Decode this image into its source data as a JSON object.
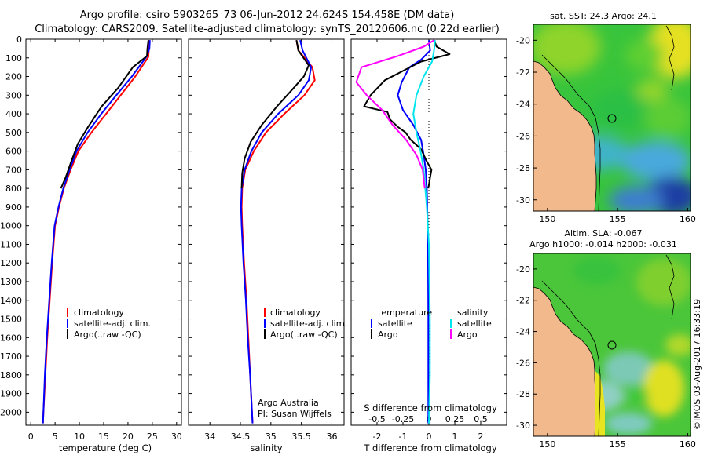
{
  "header": {
    "line1": "Argo profile: csiro 5903265_73 06-Jun-2012 24.624S 154.458E (DM data)",
    "line2": "Climatology: CARS2009. Satellite-adjusted climatology: synTS_20120606.nc (0.22d earlier)"
  },
  "colors": {
    "climatology": "#ff0000",
    "satellite": "#0000ff",
    "argo": "#000000",
    "salinity_satellite": "#00e5ee",
    "salinity_argo": "#ff00ff",
    "land": "#f2b98c"
  },
  "chart_data": [
    {
      "type": "line",
      "id": "temperature",
      "xlabel": "temperature (deg C)",
      "ylabel": "",
      "xlim": [
        -1,
        31
      ],
      "ylim": [
        2070,
        0
      ],
      "xticks": [
        0,
        5,
        10,
        15,
        20,
        25,
        30
      ],
      "yticks": [
        0,
        100,
        200,
        300,
        400,
        500,
        600,
        700,
        800,
        900,
        1000,
        1100,
        1200,
        1300,
        1400,
        1500,
        1600,
        1700,
        1800,
        1900,
        2000
      ],
      "legend": [
        "climatology",
        "satellite-adj. clim.",
        "Argo(..raw -QC)"
      ],
      "series": [
        {
          "name": "climatology",
          "color": "#ff0000",
          "points": [
            [
              24.4,
              5
            ],
            [
              24.3,
              50
            ],
            [
              24.2,
              95
            ],
            [
              21.5,
              200
            ],
            [
              18.5,
              300
            ],
            [
              15.5,
              400
            ],
            [
              12.5,
              500
            ],
            [
              9.8,
              600
            ],
            [
              8.2,
              700
            ],
            [
              6.8,
              800
            ],
            [
              5.8,
              900
            ],
            [
              5.0,
              1000
            ],
            [
              4.4,
              1200
            ],
            [
              3.9,
              1400
            ],
            [
              3.4,
              1600
            ],
            [
              3.0,
              1800
            ],
            [
              2.6,
              2000
            ],
            [
              2.5,
              2060
            ]
          ]
        },
        {
          "name": "satellite-adj. clim.",
          "color": "#0000ff",
          "points": [
            [
              24.5,
              5
            ],
            [
              24.4,
              50
            ],
            [
              23.9,
              90
            ],
            [
              20.8,
              200
            ],
            [
              17.6,
              300
            ],
            [
              14.5,
              400
            ],
            [
              11.7,
              500
            ],
            [
              9.4,
              600
            ],
            [
              8.0,
              700
            ],
            [
              6.7,
              800
            ],
            [
              5.7,
              900
            ],
            [
              4.9,
              1000
            ],
            [
              4.3,
              1200
            ],
            [
              3.8,
              1400
            ],
            [
              3.3,
              1600
            ],
            [
              2.9,
              1800
            ],
            [
              2.6,
              2000
            ],
            [
              2.5,
              2060
            ]
          ]
        },
        {
          "name": "Argo(..raw -QC)",
          "color": "#000000",
          "points": [
            [
              24.2,
              5
            ],
            [
              24.0,
              50
            ],
            [
              23.9,
              90
            ],
            [
              21.0,
              150
            ],
            [
              18.0,
              260
            ],
            [
              14.6,
              360
            ],
            [
              11.8,
              470
            ],
            [
              9.7,
              560
            ],
            [
              8.4,
              650
            ],
            [
              7.2,
              740
            ],
            [
              6.2,
              800
            ]
          ]
        }
      ]
    },
    {
      "type": "line",
      "id": "salinity",
      "xlabel": "salinity",
      "ylabel": "",
      "xlim": [
        33.65,
        36.2
      ],
      "ylim": [
        2070,
        0
      ],
      "xticks": [
        34,
        34.5,
        35,
        35.5,
        36
      ],
      "legend": [
        "climatology",
        "satellite-adj. clim.",
        "Argo(..raw -QC)"
      ],
      "annotation": [
        "Argo Australia",
        "PI: Susan Wijffels"
      ],
      "series": [
        {
          "name": "climatology",
          "color": "#ff0000",
          "points": [
            [
              35.42,
              5
            ],
            [
              35.45,
              60
            ],
            [
              35.68,
              150
            ],
            [
              35.72,
              220
            ],
            [
              35.55,
              300
            ],
            [
              35.22,
              400
            ],
            [
              34.92,
              500
            ],
            [
              34.72,
              600
            ],
            [
              34.58,
              700
            ],
            [
              34.53,
              800
            ],
            [
              34.52,
              900
            ],
            [
              34.53,
              1000
            ],
            [
              34.56,
              1200
            ],
            [
              34.6,
              1400
            ],
            [
              34.63,
              1600
            ],
            [
              34.66,
              1800
            ],
            [
              34.69,
              2000
            ],
            [
              34.7,
              2060
            ]
          ]
        },
        {
          "name": "satellite-adj. clim.",
          "color": "#0000ff",
          "points": [
            [
              35.48,
              5
            ],
            [
              35.52,
              60
            ],
            [
              35.66,
              150
            ],
            [
              35.62,
              220
            ],
            [
              35.45,
              300
            ],
            [
              35.12,
              400
            ],
            [
              34.85,
              500
            ],
            [
              34.68,
              600
            ],
            [
              34.57,
              700
            ],
            [
              34.52,
              800
            ],
            [
              34.51,
              900
            ],
            [
              34.52,
              1000
            ],
            [
              34.55,
              1200
            ],
            [
              34.59,
              1400
            ],
            [
              34.62,
              1600
            ],
            [
              34.66,
              1800
            ],
            [
              34.69,
              2000
            ],
            [
              34.7,
              2060
            ]
          ]
        },
        {
          "name": "Argo(..raw -QC)",
          "color": "#000000",
          "points": [
            [
              35.42,
              5
            ],
            [
              35.45,
              60
            ],
            [
              35.62,
              140
            ],
            [
              35.54,
              200
            ],
            [
              35.35,
              270
            ],
            [
              35.1,
              360
            ],
            [
              34.85,
              460
            ],
            [
              34.67,
              550
            ],
            [
              34.57,
              640
            ],
            [
              34.53,
              720
            ],
            [
              34.52,
              800
            ]
          ]
        }
      ]
    },
    {
      "type": "line",
      "id": "difference",
      "xlabel": "T difference from climatology",
      "xlabel_top": "S difference from climatology",
      "ylabel": "",
      "xlim": [
        -3,
        3
      ],
      "ylim": [
        2070,
        0
      ],
      "xticks": [
        -2,
        -1,
        0,
        1,
        2
      ],
      "s_ticks": [
        -0.5,
        -0.25,
        0,
        0.25,
        0.5
      ],
      "legend_temperature": [
        "temperature",
        "satellite",
        "Argo"
      ],
      "legend_salinity": [
        "salinity",
        "satellite",
        "Argo"
      ],
      "series": [
        {
          "name": "temperature satellite",
          "color": "#0000ff",
          "points": [
            [
              0,
              5
            ],
            [
              0.05,
              60
            ],
            [
              -0.3,
              110
            ],
            [
              -0.75,
              150
            ],
            [
              -1.05,
              230
            ],
            [
              -1.2,
              300
            ],
            [
              -1.0,
              380
            ],
            [
              -0.6,
              460
            ],
            [
              -0.3,
              540
            ],
            [
              -0.2,
              620
            ],
            [
              -0.12,
              700
            ],
            [
              -0.08,
              800
            ],
            [
              -0.05,
              1000
            ],
            [
              -0.03,
              1200
            ],
            [
              -0.02,
              1500
            ],
            [
              -0.02,
              1800
            ],
            [
              -0.02,
              2060
            ]
          ]
        },
        {
          "name": "temperature Argo",
          "color": "#000000",
          "points": [
            [
              0.2,
              5
            ],
            [
              0.3,
              40
            ],
            [
              0.8,
              80
            ],
            [
              -0.3,
              120
            ],
            [
              -1.0,
              170
            ],
            [
              -1.7,
              220
            ],
            [
              -2.25,
              300
            ],
            [
              -2.5,
              360
            ],
            [
              -1.6,
              390
            ],
            [
              -1.5,
              430
            ],
            [
              -1.2,
              470
            ],
            [
              -0.9,
              500
            ],
            [
              -0.7,
              540
            ],
            [
              -0.3,
              590
            ],
            [
              -0.1,
              650
            ],
            [
              0.1,
              700
            ],
            [
              0.05,
              740
            ],
            [
              -0.02,
              800
            ]
          ]
        },
        {
          "name": "salinity satellite",
          "color": "#00e5ee",
          "points": [
            [
              0.06,
              5
            ],
            [
              0.05,
              60
            ],
            [
              0.03,
              120
            ],
            [
              -0.05,
              200
            ],
            [
              -0.12,
              300
            ],
            [
              -0.15,
              400
            ],
            [
              -0.12,
              500
            ],
            [
              -0.08,
              600
            ],
            [
              -0.05,
              700
            ],
            [
              -0.02,
              900
            ],
            [
              0,
              1100
            ],
            [
              0.01,
              1500
            ],
            [
              0.01,
              1800
            ],
            [
              0,
              2060
            ]
          ]
        },
        {
          "name": "salinity Argo",
          "color": "#ff00ff",
          "points": [
            [
              0.05,
              5
            ],
            [
              -0.05,
              40
            ],
            [
              -0.3,
              90
            ],
            [
              -0.65,
              150
            ],
            [
              -0.7,
              230
            ],
            [
              -0.6,
              300
            ],
            [
              -0.45,
              380
            ],
            [
              -0.35,
              460
            ],
            [
              -0.22,
              540
            ],
            [
              -0.12,
              620
            ],
            [
              -0.06,
              700
            ],
            [
              -0.04,
              800
            ]
          ]
        }
      ]
    },
    {
      "type": "heatmap",
      "id": "sst-map",
      "title": "sat. SST: 24.3  Argo: 24.1",
      "xlim": [
        149,
        160.2
      ],
      "ylim": [
        -30.7,
        -19
      ],
      "xticks": [
        150,
        155,
        160
      ],
      "yticks": [
        -20,
        -22,
        -24,
        -26,
        -28,
        -30
      ],
      "float_position": [
        154.458,
        -24.624
      ]
    },
    {
      "type": "heatmap",
      "id": "sla-map",
      "title": "Altim. SLA: -0.067",
      "subtitle": "Argo h1000: -0.014 h2000: -0.031",
      "xlim": [
        149,
        160.2
      ],
      "ylim": [
        -30.7,
        -19
      ],
      "xticks": [
        150,
        155,
        160
      ],
      "yticks": [
        -20,
        -22,
        -24,
        -26,
        -28,
        -30
      ],
      "float_position": [
        154.458,
        -24.624
      ]
    }
  ],
  "footer": {
    "credit": "©IMOS 03-Aug-2017 16:33:19"
  }
}
